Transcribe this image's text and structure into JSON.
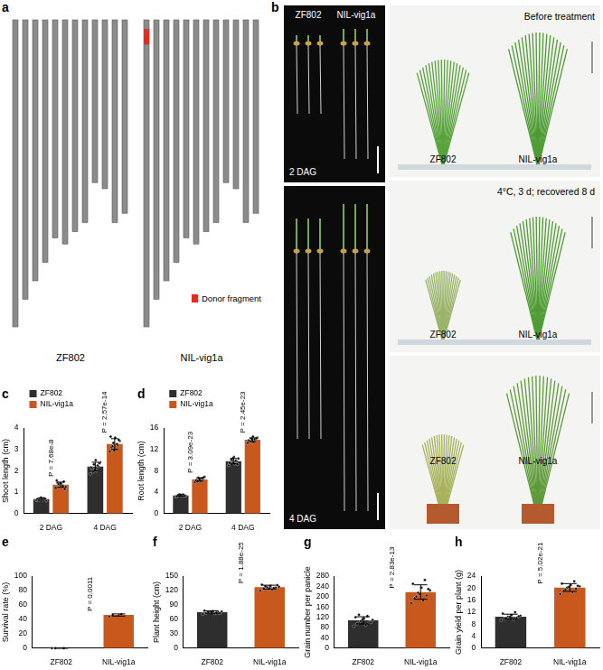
{
  "panel_a": {
    "panel": "a",
    "chromosome_lengths": [
      1.0,
      0.91,
      0.85,
      0.79,
      0.71,
      0.73,
      0.69,
      0.66,
      0.53,
      0.55,
      0.66,
      0.63
    ],
    "genotypes": [
      {
        "name": "ZF802"
      },
      {
        "name": "NIL-vig1a",
        "donor": {
          "chromosome": 1,
          "start": 0.03,
          "end": 0.08
        }
      }
    ],
    "legend_label": "Donor fragment",
    "donor_color": "#e8291c"
  },
  "panel_b": {
    "panel": "b",
    "images": [
      {
        "labels": [
          "ZF802",
          "NIL-vig1a"
        ],
        "corner": "2 DAG"
      },
      {
        "corner": "4 DAG"
      },
      {
        "caption": "Before  treatment",
        "labels": [
          "ZF802",
          "NIL-vig1a"
        ]
      },
      {
        "caption": "4°C, 3 d; recovered 8 d",
        "labels": [
          "ZF802",
          "NIL-vig1a"
        ]
      },
      {
        "labels": [
          "ZF802",
          "NIL-vig1a"
        ]
      }
    ]
  },
  "chart_data": [
    {
      "panel": "c",
      "type": "bar",
      "y_label": "Shoot length (cm)",
      "categories": [
        "2 DAG",
        "4 DAG"
      ],
      "series": [
        {
          "name": "ZF802",
          "color": "#2e2e2e",
          "values": [
            0.68,
            2.2
          ],
          "errors": [
            0.05,
            0.2
          ],
          "points": [
            [
              0.62,
              0.65,
              0.7,
              0.72,
              0.66,
              0.6,
              0.74,
              0.68,
              0.71,
              0.64,
              0.69,
              0.75
            ],
            [
              1.85,
              2.0,
              2.1,
              2.2,
              2.3,
              2.4,
              2.5,
              2.15,
              2.25,
              1.95,
              2.35,
              2.05
            ]
          ]
        },
        {
          "name": "NIL-vig1a",
          "color": "#c8581b",
          "values": [
            1.35,
            3.25
          ],
          "errors": [
            0.12,
            0.25
          ],
          "points": [
            [
              1.2,
              1.3,
              1.45,
              1.5,
              1.35,
              1.25,
              1.4,
              1.55,
              1.3,
              1.38,
              1.15,
              1.42
            ],
            [
              2.9,
              3.0,
              3.1,
              3.2,
              3.3,
              3.4,
              3.55,
              3.6,
              3.25,
              3.15,
              3.45,
              2.95
            ]
          ]
        }
      ],
      "annotations": [
        "P = 7.68e-8",
        "P = 2.57e-14"
      ],
      "ylim": [
        0,
        4
      ],
      "yticks": [
        0,
        1,
        2,
        3,
        4
      ],
      "grid": false,
      "legend": "upper left"
    },
    {
      "panel": "d",
      "type": "bar",
      "y_label": "Root length (cm)",
      "categories": [
        "2 DAG",
        "4 DAG"
      ],
      "series": [
        {
          "name": "ZF802",
          "color": "#2e2e2e",
          "values": [
            3.4,
            9.8
          ],
          "errors": [
            0.15,
            0.5
          ],
          "points": [
            [
              3.2,
              3.3,
              3.4,
              3.5,
              3.6,
              3.35,
              3.45,
              3.25,
              3.55,
              3.4,
              3.3,
              3.5
            ],
            [
              9.0,
              9.3,
              9.6,
              9.8,
              10.0,
              10.3,
              10.6,
              9.5,
              9.9,
              10.1,
              9.2,
              10.4
            ]
          ]
        },
        {
          "name": "NIL-vig1a",
          "color": "#c8581b",
          "values": [
            6.4,
            13.8
          ],
          "errors": [
            0.3,
            0.35
          ],
          "points": [
            [
              5.9,
              6.1,
              6.3,
              6.5,
              6.7,
              6.9,
              6.4,
              6.2,
              6.6,
              6.0,
              6.8,
              6.45
            ],
            [
              13.2,
              13.4,
              13.6,
              13.8,
              14.0,
              14.2,
              14.4,
              13.7,
              13.9,
              13.5,
              14.1,
              13.8
            ]
          ]
        }
      ],
      "annotations": [
        "P = 3.09e-23",
        "P = 2.45e-23"
      ],
      "ylim": [
        0,
        16
      ],
      "yticks": [
        0,
        4,
        8,
        12,
        16
      ],
      "grid": false,
      "legend": "upper left"
    },
    {
      "panel": "e",
      "type": "bar",
      "y_label": "Survival rate (%)",
      "categories": [
        "ZF802",
        "NIL-vig1a"
      ],
      "values": [
        0,
        46
      ],
      "errors": [
        0,
        1.5
      ],
      "points": [
        [
          0,
          0,
          0
        ],
        [
          44,
          47,
          46
        ]
      ],
      "colors": [
        "#2e2e2e",
        "#c8581b"
      ],
      "annotations": [
        "P = 0.0011"
      ],
      "ylim": [
        0,
        100
      ],
      "yticks": [
        0,
        20,
        40,
        60,
        80,
        100
      ],
      "grid": false
    },
    {
      "panel": "f",
      "type": "bar",
      "y_label": "Plant height (cm)",
      "categories": [
        "ZF802",
        "NIL-vig1a"
      ],
      "values": [
        75,
        127
      ],
      "errors": [
        2.5,
        4
      ],
      "points": [
        [
          71,
          72,
          73,
          74,
          75,
          76,
          77,
          78,
          74,
          75,
          73,
          76
        ],
        [
          120,
          122,
          124,
          126,
          127,
          128,
          130,
          132,
          125,
          129,
          131,
          123
        ]
      ],
      "colors": [
        "#2e2e2e",
        "#c8581b"
      ],
      "annotations": [
        "P = 1.88e-25"
      ],
      "ylim": [
        0,
        150
      ],
      "yticks": [
        0,
        30,
        60,
        90,
        120,
        150
      ],
      "grid": false
    },
    {
      "panel": "g",
      "type": "bar",
      "y_label": "Grain number per panicle",
      "categories": [
        "ZF802",
        "NIL-vig1a"
      ],
      "values": [
        108,
        218
      ],
      "errors": [
        14,
        28
      ],
      "points": [
        [
          85,
          90,
          95,
          100,
          105,
          110,
          115,
          120,
          125,
          130,
          100,
          112
        ],
        [
          175,
          185,
          195,
          205,
          215,
          225,
          235,
          250,
          265,
          200,
          230,
          210
        ]
      ],
      "colors": [
        "#2e2e2e",
        "#c8581b"
      ],
      "annotations": [
        "P = 2.83e-13"
      ],
      "ylim": [
        0,
        280
      ],
      "yticks": [
        0,
        40,
        80,
        120,
        160,
        200,
        240,
        280
      ],
      "grid": false
    },
    {
      "panel": "h",
      "type": "bar",
      "y_label": "Grain yield per plant (g)",
      "categories": [
        "ZF802",
        "NIL-vig1a"
      ],
      "values": [
        10.5,
        20.2
      ],
      "errors": [
        0.8,
        1.3
      ],
      "points": [
        [
          9.3,
          9.6,
          9.9,
          10.2,
          10.5,
          10.8,
          11.1,
          11.5,
          12.0,
          10.0,
          10.6,
          10.4
        ],
        [
          18.0,
          18.6,
          19.2,
          19.8,
          20.2,
          20.6,
          21.0,
          21.5,
          22.3,
          19.5,
          20.8,
          20.4
        ]
      ],
      "colors": [
        "#2e2e2e",
        "#c8581b"
      ],
      "annotations": [
        "P = 5.02e-21"
      ],
      "ylim": [
        0,
        24
      ],
      "yticks": [
        0,
        4,
        8,
        12,
        16,
        20,
        24
      ],
      "grid": false
    }
  ]
}
